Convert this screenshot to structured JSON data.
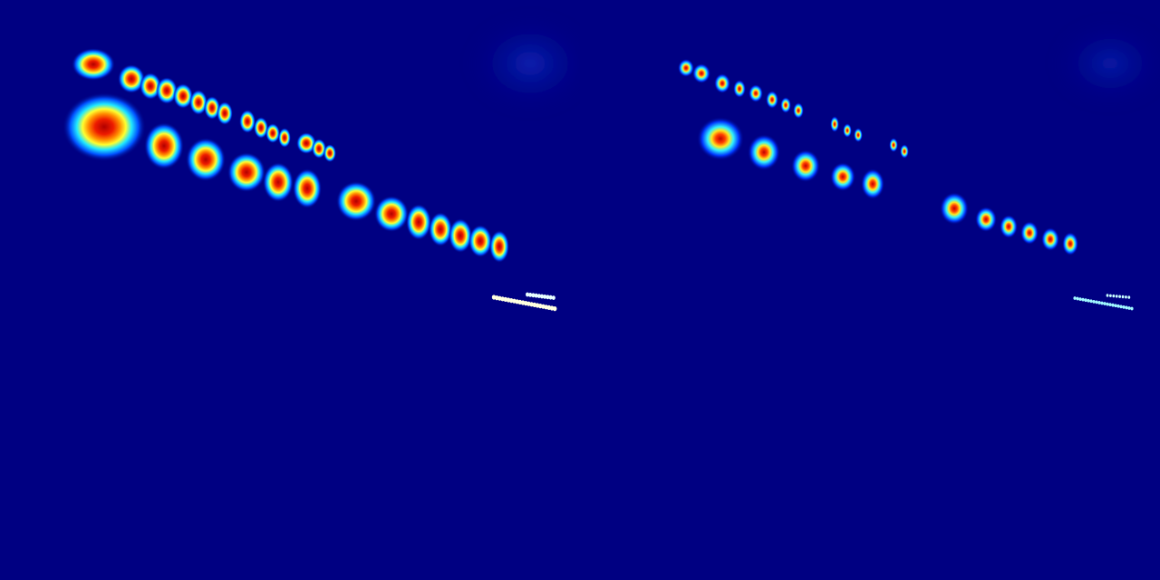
{
  "colors": {
    "background": "#000082",
    "hot": "#cc0000",
    "warm": "#ff7a00",
    "mid": "#ffff00",
    "cool": "#00d8ff",
    "cold": "#0030ff"
  },
  "panels": [
    {
      "id": "left",
      "peak_style": "broad"
    },
    {
      "id": "right",
      "peak_style": "sharp"
    }
  ]
}
